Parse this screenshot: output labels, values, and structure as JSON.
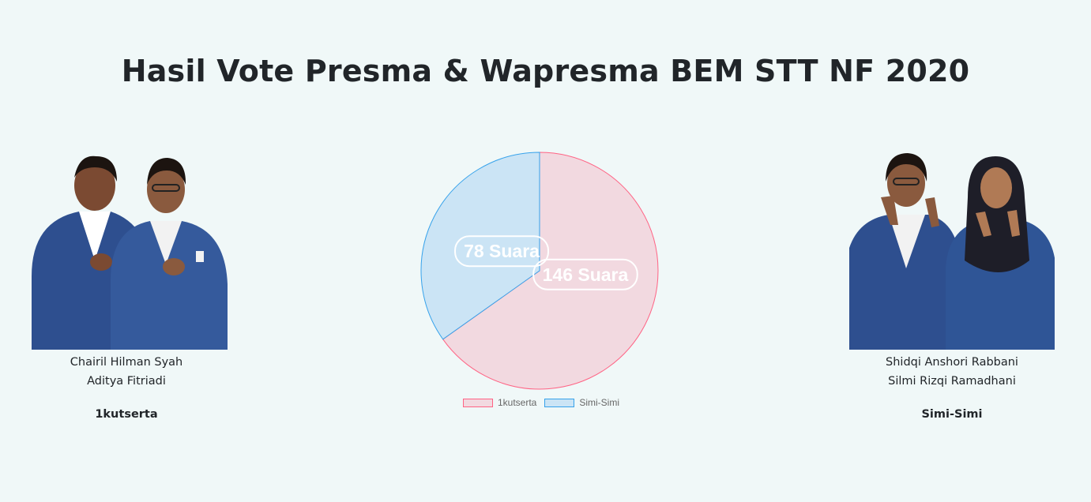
{
  "page": {
    "title": "Hasil Vote Presma & Wapresma BEM STT NF 2020"
  },
  "candidates": [
    {
      "president": "Chairil Hilman Syah",
      "vice": "Aditya Fitriadi",
      "team": "1kutserta"
    },
    {
      "president": "Shidqi Anshori Rabbani",
      "vice": "Silmi Rizqi Ramadhani",
      "team": "Simi-Simi"
    }
  ],
  "chart_data": {
    "type": "pie",
    "categories": [
      "1kutserta",
      "Simi-Simi"
    ],
    "values": [
      146,
      78
    ],
    "data_labels": [
      "146 Suara",
      "78 Suara"
    ],
    "colors": {
      "fill": [
        "#f2d9e0",
        "#cbe4f5"
      ],
      "border": [
        "#ff6384",
        "#36a2eb"
      ]
    },
    "legend_position": "bottom"
  }
}
